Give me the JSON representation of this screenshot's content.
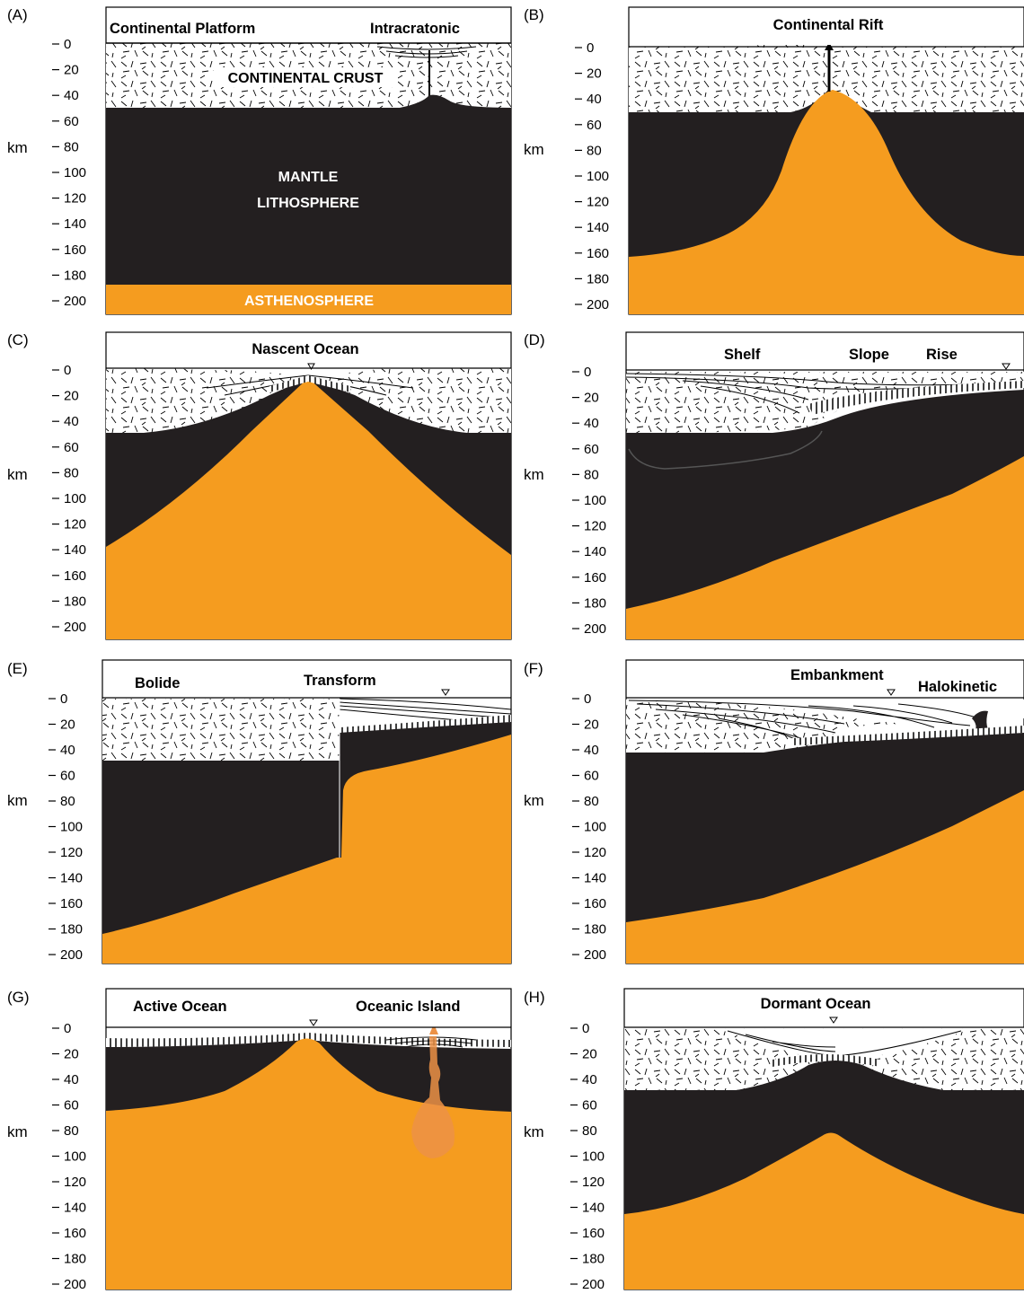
{
  "axis": {
    "unit": "km",
    "ticks": [
      "0",
      "20",
      "40",
      "60",
      "80",
      "100",
      "120",
      "140",
      "160",
      "180",
      "200"
    ]
  },
  "colors": {
    "mantle_lithosphere": "#231f20",
    "asthenosphere": "#f59c1f",
    "crust": "#ffffff",
    "plume": "#f0a858"
  },
  "panels": [
    {
      "id": "A",
      "label": "(A)",
      "titles": [
        "Continental Platform",
        "Intracratonic"
      ],
      "inner": [
        "CONTINENTAL CRUST",
        "MANTLE",
        "LITHOSPHERE",
        "ASTHENOSPHERE"
      ]
    },
    {
      "id": "B",
      "label": "(B)",
      "titles": [
        "Continental Rift"
      ]
    },
    {
      "id": "C",
      "label": "(C)",
      "titles": [
        "Nascent Ocean"
      ]
    },
    {
      "id": "D",
      "label": "(D)",
      "titles": [
        "Shelf",
        "Slope",
        "Rise"
      ]
    },
    {
      "id": "E",
      "label": "(E)",
      "titles": [
        "Bolide",
        "Transform"
      ]
    },
    {
      "id": "F",
      "label": "(F)",
      "titles": [
        "Embankment",
        "Halokinetic"
      ]
    },
    {
      "id": "G",
      "label": "(G)",
      "titles": [
        "Active Ocean",
        "Oceanic Island"
      ]
    },
    {
      "id": "H",
      "label": "(H)",
      "titles": [
        "Dormant Ocean"
      ]
    }
  ]
}
